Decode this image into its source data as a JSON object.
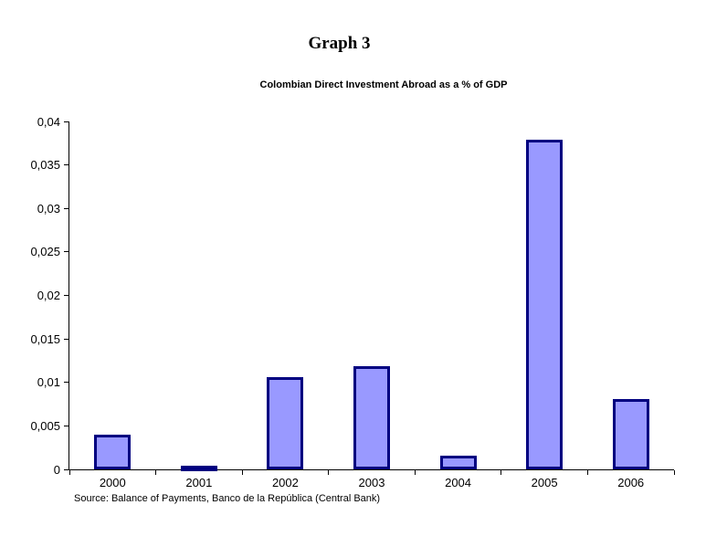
{
  "page": {
    "background": "#ffffff"
  },
  "chart_data": {
    "type": "bar",
    "title": "Graph 3",
    "subtitle": "Colombian Direct Investment Abroad as a % of GDP",
    "categories": [
      "2000",
      "2001",
      "2002",
      "2003",
      "2004",
      "2005",
      "2006"
    ],
    "values": [
      0.004,
      0.0004,
      0.0106,
      0.0119,
      0.0016,
      0.0379,
      0.0081
    ],
    "xlabel": "",
    "ylabel": "",
    "ylim": [
      0,
      0.04
    ],
    "ytick_step": 0.005,
    "ytick_labels": [
      "0",
      "0,005",
      "0,01",
      "0,015",
      "0,02",
      "0,025",
      "0,03",
      "0,035",
      "0,04"
    ],
    "grid": false,
    "legend": "none",
    "bar_fill_color": "#9999FF",
    "bar_border_color": "#000080",
    "axis_color": "#000000",
    "source_note": "Source: Balance of Payments, Banco de la República (Central Bank)"
  }
}
